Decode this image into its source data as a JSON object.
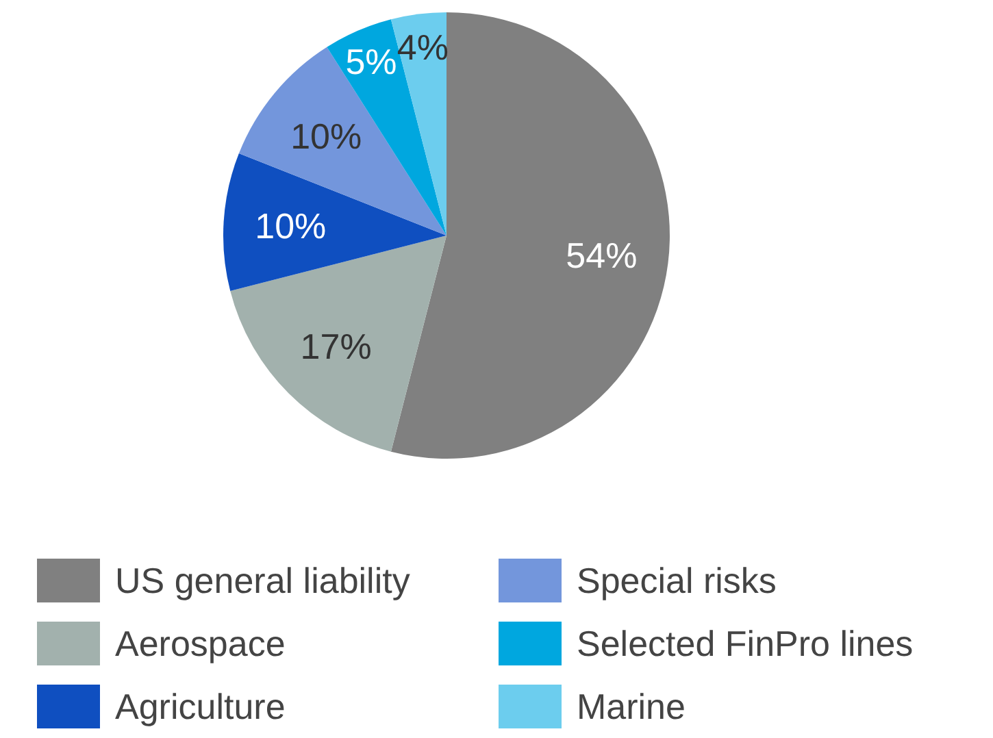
{
  "chart_data": {
    "type": "pie",
    "categories": [
      "US general liability",
      "Aerospace",
      "Agriculture",
      "Special risks",
      "Selected FinPro lines",
      "Marine"
    ],
    "values": [
      54,
      17,
      10,
      10,
      5,
      4
    ],
    "colors": [
      "#808080",
      "#a2b1ad",
      "#0f4fc0",
      "#7396dc",
      "#00a7df",
      "#6ccdee"
    ],
    "value_labels": [
      "54%",
      "17%",
      "10%",
      "10%",
      "5%",
      "4%"
    ],
    "legend": "bottom"
  }
}
